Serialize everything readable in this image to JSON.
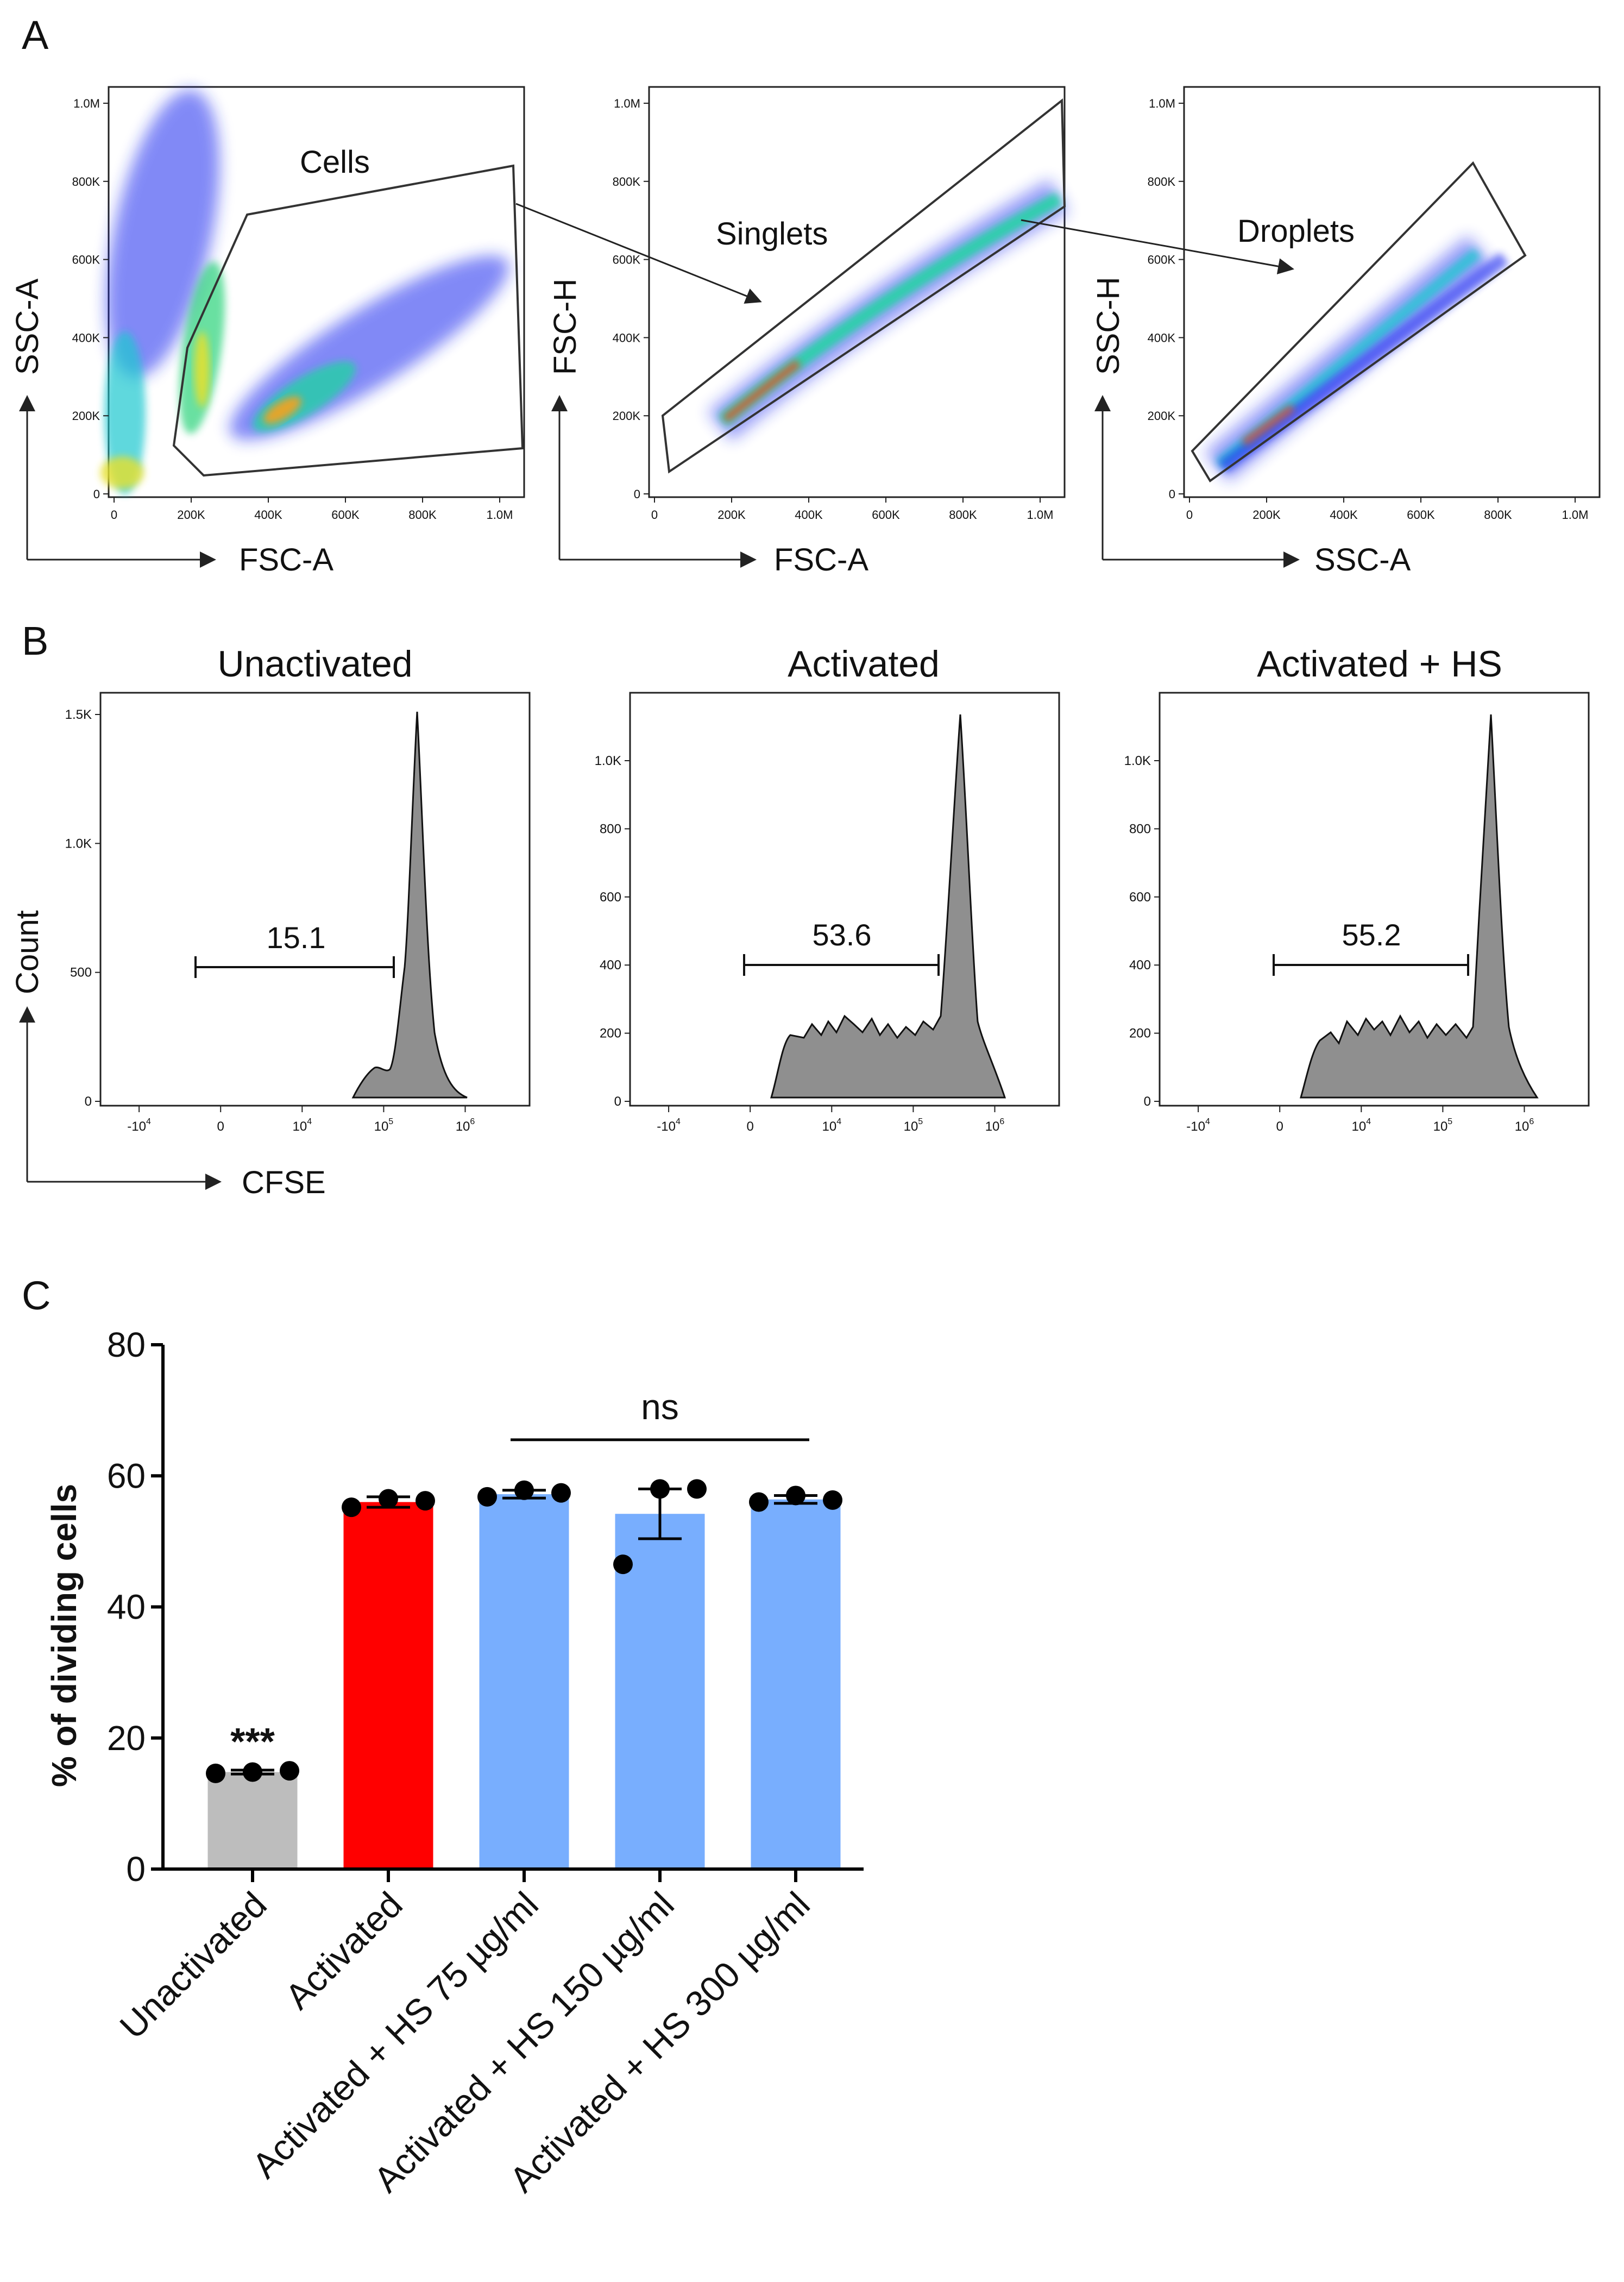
{
  "panel_labels": {
    "a": "A",
    "b": "B",
    "c": "C"
  },
  "gating": {
    "plots": [
      {
        "xlabel": "FSC-A",
        "ylabel": "SSC-A",
        "gate": "Cells",
        "xticks": [
          "0",
          "200K",
          "400K",
          "600K",
          "800K",
          "1.0M"
        ],
        "yticks": [
          "0",
          "200K",
          "400K",
          "600K",
          "800K",
          "1.0M"
        ]
      },
      {
        "xlabel": "FSC-A",
        "ylabel": "FSC-H",
        "gate": "Singlets",
        "xticks": [
          "0",
          "200K",
          "400K",
          "600K",
          "800K",
          "1.0M"
        ],
        "yticks": [
          "0",
          "200K",
          "400K",
          "600K",
          "800K",
          "1.0M"
        ]
      },
      {
        "xlabel": "SSC-A",
        "ylabel": "SSC-H",
        "gate": "Droplets",
        "xticks": [
          "0",
          "200K",
          "400K",
          "600K",
          "800K",
          "1.0M"
        ],
        "yticks": [
          "0",
          "200K",
          "400K",
          "600K",
          "800K",
          "1.0M"
        ]
      }
    ]
  },
  "cfse": {
    "xlabel": "CFSE",
    "ylabel": "Count",
    "xticks": [
      "-10",
      "0",
      "10",
      "10",
      "10"
    ],
    "xtick_exps": [
      "4",
      "",
      "4",
      "5",
      "6"
    ],
    "histograms": [
      {
        "title": "Unactivated",
        "percent_dividing": "15.1",
        "yticks": [
          "0",
          "500",
          "1.0K",
          "1.5K"
        ]
      },
      {
        "title": "Activated",
        "percent_dividing": "53.6",
        "yticks": [
          "0",
          "200",
          "400",
          "600",
          "800",
          "1.0K"
        ]
      },
      {
        "title": "Activated + HS",
        "percent_dividing": "55.2",
        "yticks": [
          "0",
          "200",
          "400",
          "600",
          "800",
          "1.0K"
        ]
      }
    ]
  },
  "chart_data": {
    "type": "bar",
    "title": "",
    "xlabel": "",
    "ylabel": "% of dividing cells",
    "ylim": [
      0,
      80
    ],
    "yticks": [
      0,
      20,
      40,
      60,
      80
    ],
    "categories": [
      "Unactivated",
      "Activated",
      "Activated + HS 75 µg/ml",
      "Activated + HS 150 µg/ml",
      "Activated + HS 300 µg/ml"
    ],
    "values": [
      14.8,
      56.0,
      57.2,
      54.2,
      56.4
    ],
    "sem": [
      0.3,
      0.8,
      0.6,
      3.8,
      0.6
    ],
    "replicates": [
      [
        14.6,
        14.8,
        15.0
      ],
      [
        55.2,
        56.5,
        56.2
      ],
      [
        56.8,
        57.8,
        57.4
      ],
      [
        46.5,
        58.0,
        58.0
      ],
      [
        56.0,
        57.0,
        56.3
      ]
    ],
    "colors": [
      "#bdbdbd",
      "#ff0000",
      "#78aefe",
      "#78aefe",
      "#78aefe"
    ],
    "annotations": [
      {
        "text": "***",
        "category": "Unactivated"
      },
      {
        "text": "ns",
        "from": "Activated + HS 75 µg/ml",
        "to": "Activated + HS 300 µg/ml"
      }
    ],
    "grid": false,
    "legend": "none"
  }
}
